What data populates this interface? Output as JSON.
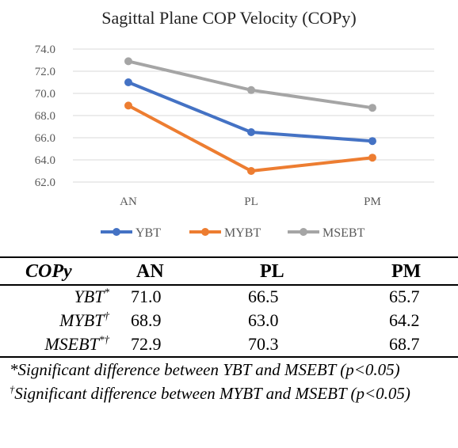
{
  "chart_data": {
    "type": "line",
    "title": "Sagittal Plane COP Velocity (COPy)",
    "categories": [
      "AN",
      "PL",
      "PM"
    ],
    "ylim": [
      62.0,
      74.0
    ],
    "yticks": [
      "62.0",
      "64.0",
      "66.0",
      "68.0",
      "70.0",
      "72.0",
      "74.0"
    ],
    "grid": true,
    "legend": "bottom",
    "series": [
      {
        "name": "YBT",
        "values": [
          71.0,
          66.5,
          65.7
        ],
        "color": "#4472C4"
      },
      {
        "name": "MYBT",
        "values": [
          68.9,
          63.0,
          64.2
        ],
        "color": "#ED7D31"
      },
      {
        "name": "MSEBT",
        "values": [
          72.9,
          70.3,
          68.7
        ],
        "color": "#A5A5A5"
      }
    ]
  },
  "table": {
    "headers": [
      "COPy",
      "AN",
      "PL",
      "PM"
    ],
    "rows": [
      {
        "label": "YBT",
        "mark": "*",
        "values": [
          "71.0",
          "66.5",
          "65.7"
        ]
      },
      {
        "label": "MYBT",
        "mark": "†",
        "values": [
          "68.9",
          "63.0",
          "64.2"
        ]
      },
      {
        "label": "MSEBT",
        "mark": "*†",
        "values": [
          "72.9",
          "70.3",
          "68.7"
        ]
      }
    ],
    "notes": [
      {
        "mark": "",
        "text": "*Significant difference between YBT and MSEBT (p<0.05)"
      },
      {
        "mark": "†",
        "text": "Significant difference between MYBT and MSEBT (p<0.05)"
      }
    ]
  }
}
